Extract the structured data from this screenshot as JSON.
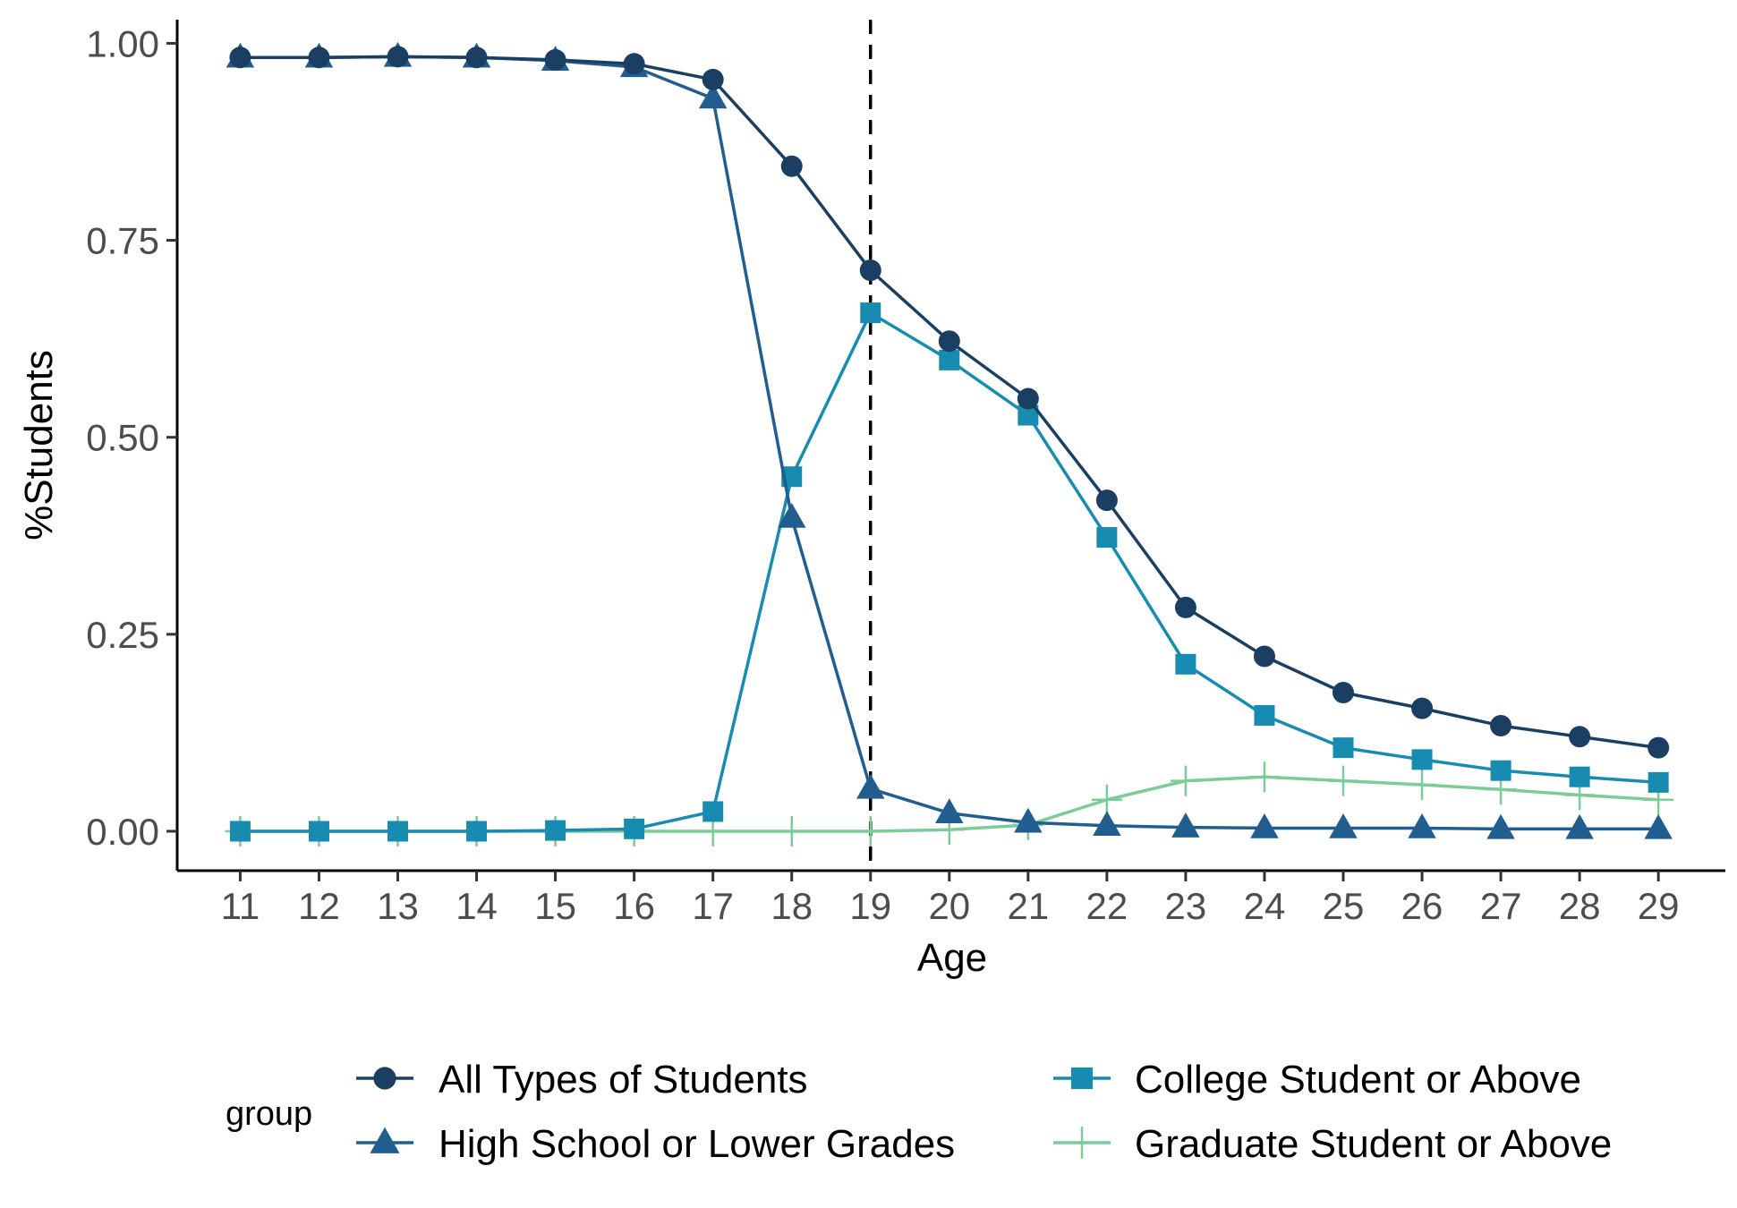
{
  "chart_data": {
    "type": "line",
    "xlabel": "Age",
    "ylabel": "%Students",
    "x": [
      11,
      12,
      13,
      14,
      15,
      16,
      17,
      18,
      19,
      20,
      21,
      22,
      23,
      24,
      25,
      26,
      27,
      28,
      29
    ],
    "x_ticks": [
      "11",
      "12",
      "13",
      "14",
      "15",
      "16",
      "17",
      "18",
      "19",
      "20",
      "21",
      "22",
      "23",
      "24",
      "25",
      "26",
      "27",
      "28",
      "29"
    ],
    "y_ticks": [
      "0.00",
      "0.25",
      "0.50",
      "0.75",
      "1.00"
    ],
    "y_tick_values": [
      0,
      0.25,
      0.5,
      0.75,
      1.0
    ],
    "ylim": [
      -0.05,
      1.03
    ],
    "xlim": [
      10.2,
      29.85
    ],
    "grid": false,
    "reference_line": {
      "x": 19,
      "style": "dashed",
      "color": "#000000"
    },
    "legend": {
      "title": "group",
      "position": "bottom",
      "entries": [
        "All Types of Students",
        "High School or Lower Grades",
        "College Student or Above",
        "Graduate Student or Above"
      ]
    },
    "series": [
      {
        "name": "All Types of Students",
        "marker": "circle",
        "color": "#1b3f62",
        "values": [
          0.982,
          0.982,
          0.983,
          0.982,
          0.979,
          0.974,
          0.954,
          0.844,
          0.712,
          0.622,
          0.549,
          0.42,
          0.284,
          0.222,
          0.176,
          0.156,
          0.134,
          0.12,
          0.106
        ]
      },
      {
        "name": "High School or Lower Grades",
        "marker": "triangle",
        "color": "#215d8e",
        "values": [
          0.982,
          0.982,
          0.983,
          0.982,
          0.978,
          0.97,
          0.93,
          0.398,
          0.054,
          0.023,
          0.011,
          0.007,
          0.005,
          0.004,
          0.004,
          0.004,
          0.003,
          0.003,
          0.003
        ]
      },
      {
        "name": "College Student or Above",
        "marker": "square",
        "color": "#178cb0",
        "values": [
          0.0,
          0.0,
          0.0,
          0.0,
          0.001,
          0.003,
          0.025,
          0.45,
          0.658,
          0.598,
          0.528,
          0.373,
          0.212,
          0.147,
          0.106,
          0.091,
          0.077,
          0.069,
          0.062
        ]
      },
      {
        "name": "Graduate Student or Above",
        "marker": "plus",
        "color": "#7ccb98",
        "values": [
          0.0,
          0.0,
          0.0,
          0.0,
          0.0,
          0.0,
          0.0,
          0.0,
          0.0,
          0.002,
          0.008,
          0.04,
          0.064,
          0.069,
          0.064,
          0.059,
          0.053,
          0.046,
          0.04
        ]
      }
    ]
  }
}
